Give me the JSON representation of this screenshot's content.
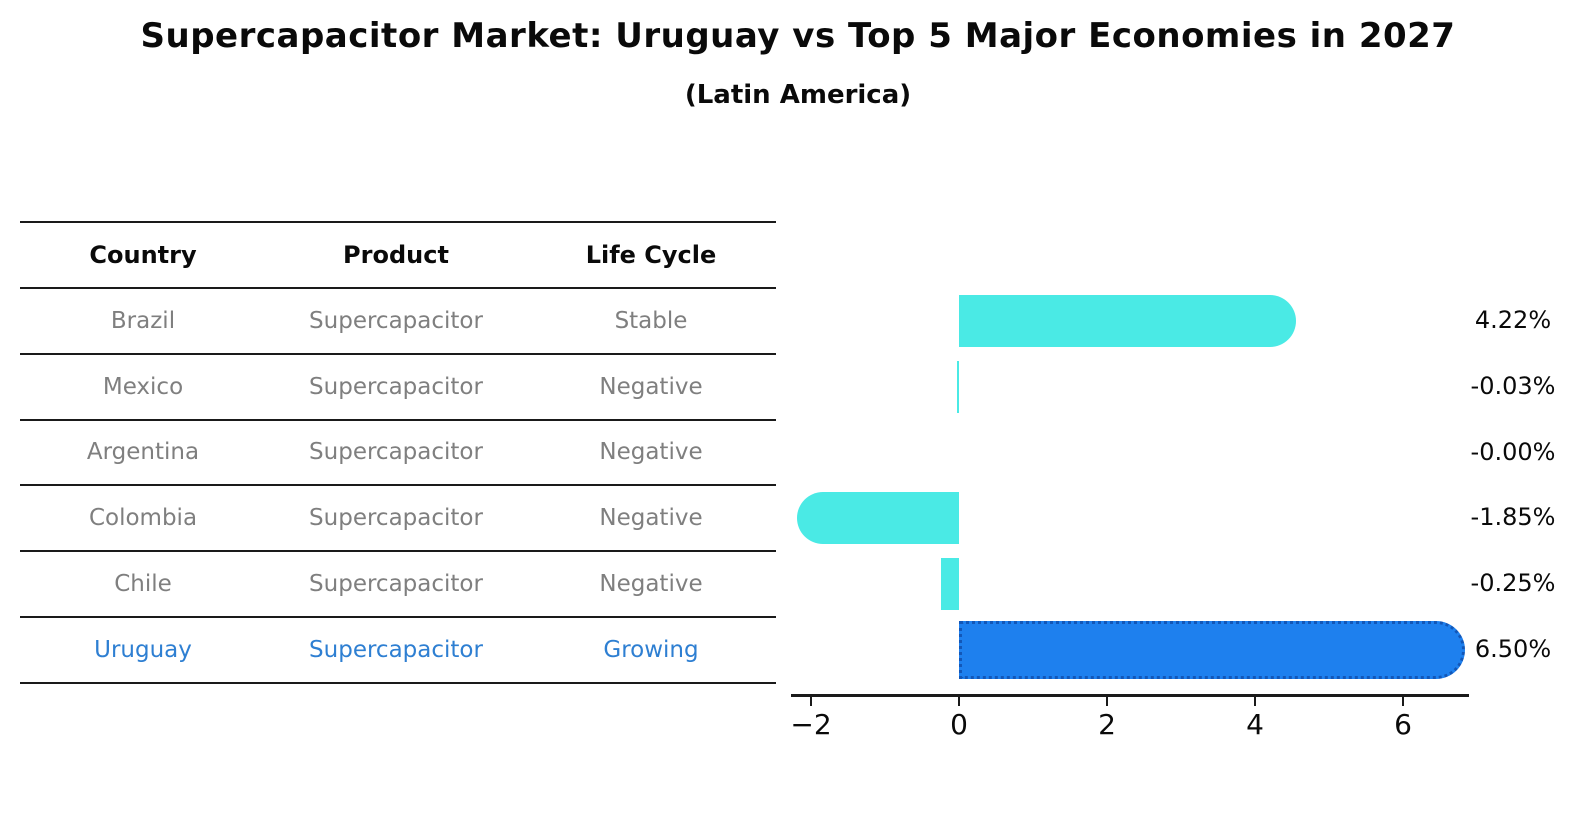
{
  "title": "Supercapacitor Market: Uruguay vs Top 5 Major Economies in 2027",
  "subtitle": "(Latin America)",
  "table": {
    "headers": [
      "Country",
      "Product",
      "Life Cycle"
    ],
    "rows": [
      {
        "country": "Brazil",
        "product": "Supercapacitor",
        "life_cycle": "Stable",
        "highlight": false
      },
      {
        "country": "Mexico",
        "product": "Supercapacitor",
        "life_cycle": "Negative",
        "highlight": false
      },
      {
        "country": "Argentina",
        "product": "Supercapacitor",
        "life_cycle": "Negative",
        "highlight": false
      },
      {
        "country": "Colombia",
        "product": "Supercapacitor",
        "life_cycle": "Negative",
        "highlight": false
      },
      {
        "country": "Chile",
        "product": "Supercapacitor",
        "life_cycle": "Negative",
        "highlight": false
      },
      {
        "country": "Uruguay",
        "product": "Supercapacitor",
        "life_cycle": "Growing",
        "highlight": true
      }
    ]
  },
  "chart_data": {
    "type": "bar",
    "orientation": "horizontal",
    "categories": [
      "Brazil",
      "Mexico",
      "Argentina",
      "Colombia",
      "Chile",
      "Uruguay"
    ],
    "values": [
      4.22,
      -0.03,
      -0.0,
      -1.85,
      -0.25,
      6.5
    ],
    "value_labels": [
      "4.22%",
      "-0.03%",
      "-0.00%",
      "-1.85%",
      "-0.25%",
      "6.50%"
    ],
    "highlight_index": 5,
    "x_ticks": [
      -2,
      0,
      2,
      4,
      6
    ],
    "x_tick_labels": [
      "−2",
      "0",
      "2",
      "4",
      "6"
    ],
    "xlim": [
      -2.27,
      6.89
    ],
    "grid": false,
    "legend": "none",
    "bar_color": "#4aeae5",
    "highlight_bar_color": "#1e80ee",
    "highlight_edge_color": "#1257b8",
    "highlight_text_color": "#2e7fd2",
    "row_text_color": "#7f7f7f"
  }
}
